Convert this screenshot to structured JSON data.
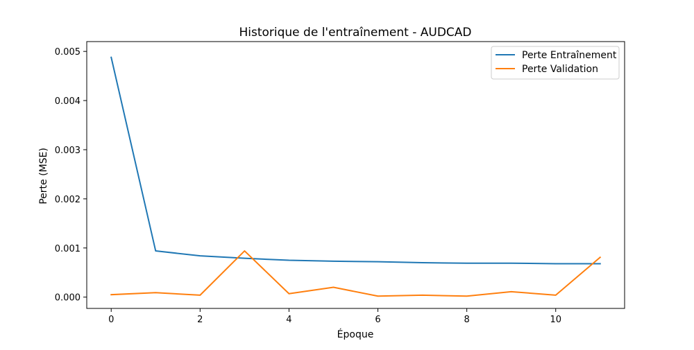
{
  "chart_data": {
    "type": "line",
    "title": "Historique de l'entraînement - AUDCAD",
    "xlabel": "Époque",
    "ylabel": "Perte (MSE)",
    "x": [
      0,
      1,
      2,
      3,
      4,
      5,
      6,
      7,
      8,
      9,
      10,
      11
    ],
    "xlim": [
      -0.55,
      11.55
    ],
    "ylim": [
      -0.00023,
      0.0052
    ],
    "xticks": [
      0,
      2,
      4,
      6,
      8,
      10
    ],
    "xtick_labels": [
      "0",
      "2",
      "4",
      "6",
      "8",
      "10"
    ],
    "yticks": [
      0.0,
      0.001,
      0.002,
      0.003,
      0.004,
      0.005
    ],
    "ytick_labels": [
      "0.000",
      "0.001",
      "0.002",
      "0.003",
      "0.004",
      "0.005"
    ],
    "grid": false,
    "legend_position": "top-right",
    "series": [
      {
        "name": "Perte Entraînement",
        "color": "#1f77b4",
        "values": [
          0.00488,
          0.00094,
          0.00084,
          0.00079,
          0.00075,
          0.00073,
          0.00072,
          0.0007,
          0.00069,
          0.00069,
          0.00068,
          0.00068
        ]
      },
      {
        "name": "Perte Validation",
        "color": "#ff7f0e",
        "values": [
          5e-05,
          9e-05,
          4e-05,
          0.00094,
          7e-05,
          0.0002,
          2e-05,
          4e-05,
          2e-05,
          0.00011,
          4e-05,
          0.00081
        ]
      }
    ]
  }
}
